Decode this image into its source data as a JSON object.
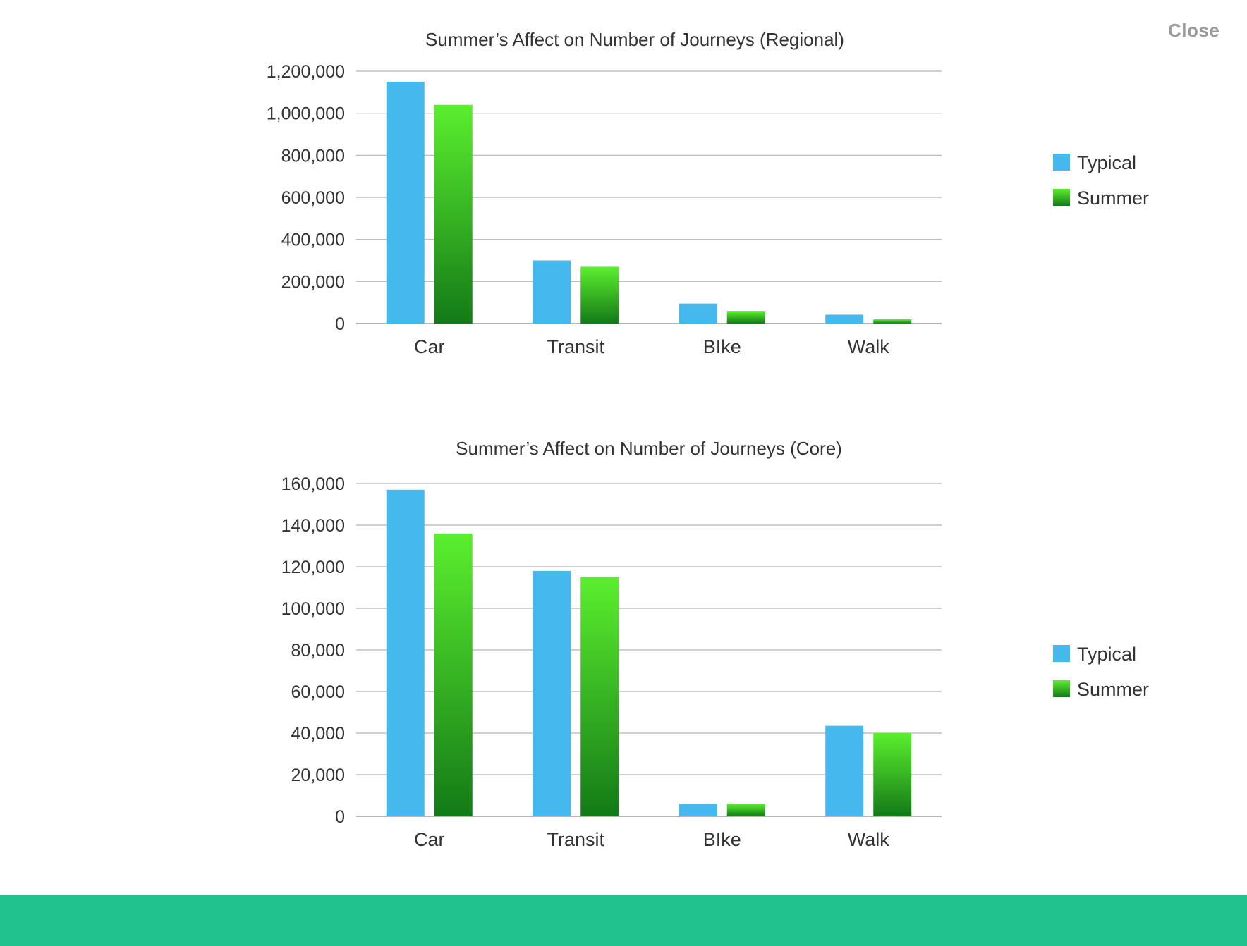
{
  "close_label": "Close",
  "colors": {
    "typical": "#45b9ee",
    "summer_top": "#5bef2e",
    "summer_bottom": "#137a17",
    "footer": "#22c28e"
  },
  "chart_data": [
    {
      "type": "bar",
      "title": "Summer’s Affect on Number of  Journeys (Regional)",
      "categories": [
        "Car",
        "Transit",
        "BIke",
        "Walk"
      ],
      "series": [
        {
          "name": "Typical",
          "values": [
            1150000,
            300000,
            95000,
            42000
          ]
        },
        {
          "name": "Summer",
          "values": [
            1040000,
            270000,
            60000,
            20000
          ]
        }
      ],
      "yticks": [
        "0",
        "200,000",
        "400,000",
        "600,000",
        "800,000",
        "1,000,000",
        "1,200,000"
      ],
      "ylim": [
        0,
        1200000
      ],
      "grid": true,
      "legend_position": "right"
    },
    {
      "type": "bar",
      "title": "Summer’s Affect on Number of  Journeys (Core)",
      "categories": [
        "Car",
        "Transit",
        "BIke",
        "Walk"
      ],
      "series": [
        {
          "name": "Typical",
          "values": [
            157000,
            118000,
            6000,
            43500
          ]
        },
        {
          "name": "Summer",
          "values": [
            136000,
            115000,
            6000,
            40000
          ]
        }
      ],
      "yticks": [
        "0",
        "20,000",
        "40,000",
        "60,000",
        "80,000",
        "100,000",
        "120,000",
        "140,000",
        "160,000"
      ],
      "ylim": [
        0,
        160000
      ],
      "grid": true,
      "legend_position": "right"
    }
  ]
}
